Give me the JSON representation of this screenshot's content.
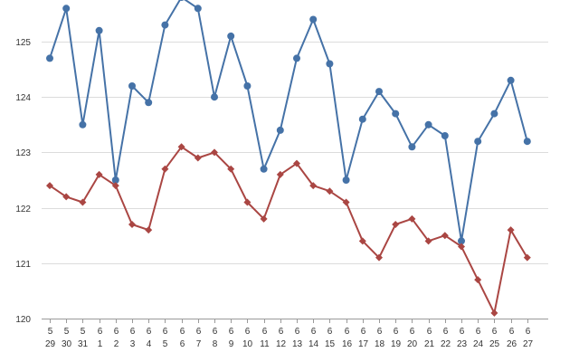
{
  "chart_data": {
    "type": "line",
    "title": "",
    "xlabel": "",
    "ylabel": "",
    "ylim": [
      120,
      126
    ],
    "yticks": [
      "120",
      "121",
      "122",
      "123",
      "124",
      "125"
    ],
    "grid": true,
    "categories": [
      {
        "month": "5",
        "day": "29"
      },
      {
        "month": "5",
        "day": "30"
      },
      {
        "month": "5",
        "day": "31"
      },
      {
        "month": "6",
        "day": "1"
      },
      {
        "month": "6",
        "day": "2"
      },
      {
        "month": "6",
        "day": "3"
      },
      {
        "month": "6",
        "day": "4"
      },
      {
        "month": "6",
        "day": "5"
      },
      {
        "month": "6",
        "day": "6"
      },
      {
        "month": "6",
        "day": "7"
      },
      {
        "month": "6",
        "day": "8"
      },
      {
        "month": "6",
        "day": "9"
      },
      {
        "month": "6",
        "day": "10"
      },
      {
        "month": "6",
        "day": "11"
      },
      {
        "month": "6",
        "day": "12"
      },
      {
        "month": "6",
        "day": "13"
      },
      {
        "month": "6",
        "day": "14"
      },
      {
        "month": "6",
        "day": "15"
      },
      {
        "month": "6",
        "day": "16"
      },
      {
        "month": "6",
        "day": "17"
      },
      {
        "month": "6",
        "day": "18"
      },
      {
        "month": "6",
        "day": "19"
      },
      {
        "month": "6",
        "day": "20"
      },
      {
        "month": "6",
        "day": "21"
      },
      {
        "month": "6",
        "day": "22"
      },
      {
        "month": "6",
        "day": "23"
      },
      {
        "month": "6",
        "day": "24"
      },
      {
        "month": "6",
        "day": "25"
      },
      {
        "month": "6",
        "day": "26"
      },
      {
        "month": "6",
        "day": "27"
      }
    ],
    "series": [
      {
        "color": "#4572a7",
        "marker": "circle",
        "values": [
          124.7,
          125.6,
          123.5,
          125.2,
          122.5,
          124.2,
          123.9,
          125.3,
          125.8,
          125.6,
          124.0,
          125.1,
          124.2,
          122.7,
          123.4,
          124.7,
          125.4,
          124.6,
          122.5,
          123.6,
          124.1,
          123.7,
          123.1,
          123.5,
          123.3,
          121.4,
          123.2,
          123.7,
          124.3,
          123.2
        ]
      },
      {
        "color": "#aa4643",
        "marker": "diamond",
        "values": [
          122.4,
          122.2,
          122.1,
          122.6,
          122.4,
          121.7,
          121.6,
          122.7,
          123.1,
          122.9,
          123.0,
          122.7,
          122.1,
          121.8,
          122.6,
          122.8,
          122.4,
          122.3,
          122.1,
          121.4,
          121.1,
          121.7,
          121.8,
          121.4,
          121.5,
          121.3,
          120.7,
          120.1,
          121.6,
          121.1
        ]
      }
    ]
  }
}
